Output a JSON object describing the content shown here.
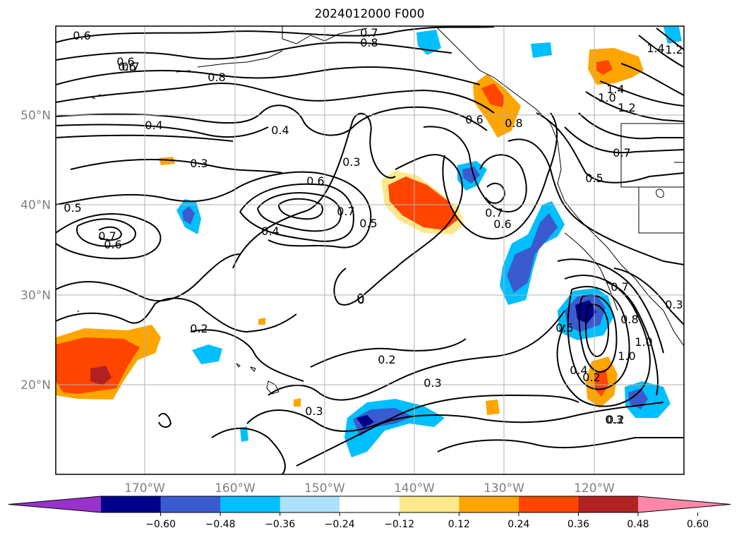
{
  "title": "2024012000 F000",
  "lon_labels": [
    "170°W",
    "160°W",
    "150°W",
    "140°W",
    "130°W",
    "120°W"
  ],
  "lat_labels": [
    "50°N",
    "40°N",
    "30°N",
    "20°N"
  ],
  "colorbar": {
    "ticks": [
      "−0.60",
      "−0.48",
      "−0.36",
      "−0.24",
      "−0.12",
      "0.12",
      "0.24",
      "0.36",
      "0.48",
      "0.60"
    ],
    "colors": [
      "#9932cc",
      "#00008b",
      "#3a5bcf",
      "#00bfff",
      "#ade0fa",
      "#ffffff",
      "#ffe88a",
      "#ffa500",
      "#ff4500",
      "#b22222",
      "#ff88aa"
    ]
  },
  "contour_labels": [
    "0.6",
    "0.6",
    "0.7",
    "0.8",
    "0.6",
    "0.7",
    "0.4",
    "0.3",
    "0.8",
    "0.4",
    "0.5",
    "0.7",
    "0.6",
    "0.6",
    "0.4",
    "0.7",
    "0.5",
    "0.3",
    "0.6",
    "0.8",
    "0.7",
    "0.6",
    "1.4",
    "1.2",
    "1.4",
    "1.0",
    "1.2",
    "0.7",
    "0.5",
    "0.3",
    "0.2",
    "0.2",
    "0.3",
    "0.3",
    "0.2",
    "0.4",
    "0.5",
    "0.7",
    "0.8",
    "1.0",
    "1.0",
    "0.2",
    "0.3"
  ]
}
